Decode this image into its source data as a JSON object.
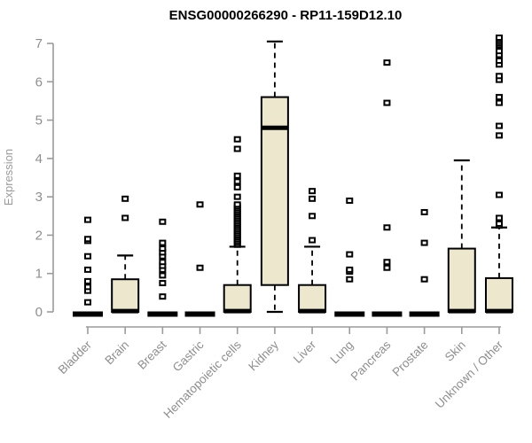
{
  "chart_data": {
    "type": "boxplot",
    "title": "ENSG00000266290 - RP11-159D12.10",
    "ylabel": "Expression",
    "xlabel": "",
    "ylim": [
      0,
      7
    ],
    "yticks": [
      0,
      1,
      2,
      3,
      4,
      5,
      6,
      7
    ],
    "grid": "off",
    "legend": "none",
    "categories": [
      "Bladder",
      "Brain",
      "Breast",
      "Gastric",
      "Hematopoietic cells",
      "Kidney",
      "Liver",
      "Lung",
      "Pancreas",
      "Prostate",
      "Skin",
      "Unknown / Other"
    ],
    "boxes": [
      {
        "category": "Bladder",
        "min": 0,
        "q1": 0,
        "median": 0,
        "q3": 0,
        "max": 0,
        "outliers": [
          0.25,
          0.55,
          0.65,
          0.8,
          1.1,
          1.45,
          1.85,
          1.9,
          2.4
        ]
      },
      {
        "category": "Brain",
        "min": 0,
        "q1": 0,
        "median": 0.02,
        "q3": 0.85,
        "max": 1.47,
        "outliers": [
          2.45,
          2.95
        ]
      },
      {
        "category": "Breast",
        "min": 0,
        "q1": 0,
        "median": 0,
        "q3": 0,
        "max": 0,
        "outliers": [
          0.4,
          0.75,
          0.95,
          1.1,
          1.2,
          1.3,
          1.45,
          1.55,
          1.65,
          1.8,
          2.35
        ]
      },
      {
        "category": "Gastric",
        "min": 0,
        "q1": 0,
        "median": 0,
        "q3": 0,
        "max": 0,
        "outliers": [
          1.15,
          2.8
        ]
      },
      {
        "category": "Hematopoietic cells",
        "min": 0,
        "q1": 0,
        "median": 0.02,
        "q3": 0.7,
        "max": 1.7,
        "outliers": [
          1.75,
          1.8,
          1.85,
          1.9,
          1.95,
          2.0,
          2.05,
          2.1,
          2.15,
          2.2,
          2.25,
          2.3,
          2.35,
          2.4,
          2.45,
          2.5,
          2.55,
          2.6,
          2.65,
          2.7,
          2.75,
          2.8,
          3.0,
          3.25,
          3.4,
          3.55,
          4.25,
          4.5
        ]
      },
      {
        "category": "Kidney",
        "min": 0,
        "q1": 0.7,
        "median": 4.8,
        "q3": 5.6,
        "max": 7.05,
        "outliers": []
      },
      {
        "category": "Liver",
        "min": 0,
        "q1": 0,
        "median": 0.02,
        "q3": 0.7,
        "max": 1.7,
        "outliers": [
          1.87,
          2.5,
          2.95,
          3.15
        ]
      },
      {
        "category": "Lung",
        "min": 0,
        "q1": 0,
        "median": 0,
        "q3": 0,
        "max": 0,
        "outliers": [
          0.85,
          1.05,
          1.1,
          1.5,
          2.9
        ]
      },
      {
        "category": "Pancreas",
        "min": 0,
        "q1": 0,
        "median": 0,
        "q3": 0,
        "max": 0,
        "outliers": [
          1.15,
          1.3,
          2.2,
          5.45,
          6.5
        ]
      },
      {
        "category": "Prostate",
        "min": 0,
        "q1": 0,
        "median": 0,
        "q3": 0,
        "max": 0,
        "outliers": [
          0.85,
          1.8,
          2.6
        ]
      },
      {
        "category": "Skin",
        "min": 0,
        "q1": 0,
        "median": 0.02,
        "q3": 1.65,
        "max": 3.95,
        "outliers": []
      },
      {
        "category": "Unknown / Other",
        "min": 0,
        "q1": 0,
        "median": 0.02,
        "q3": 0.88,
        "max": 2.2,
        "outliers": [
          2.25,
          2.3,
          2.45,
          3.05,
          4.6,
          4.85,
          5.45,
          5.6,
          6.05,
          6.15,
          6.45,
          6.55,
          6.7,
          6.8,
          6.95,
          7.0,
          7.05,
          7.1,
          7.15
        ]
      }
    ],
    "colors": {
      "box_fill": "#EDE8CD",
      "box_border": "#000000",
      "median": "#000000",
      "collapsed_bar": "#000000",
      "whisker": "#000000",
      "outlier_stroke": "#000000",
      "outlier_fill": "#ffffff",
      "axis_line": "#9b9b9b",
      "axis_text": "#8e8e8e",
      "title": "#000000",
      "background": "#ffffff"
    }
  }
}
